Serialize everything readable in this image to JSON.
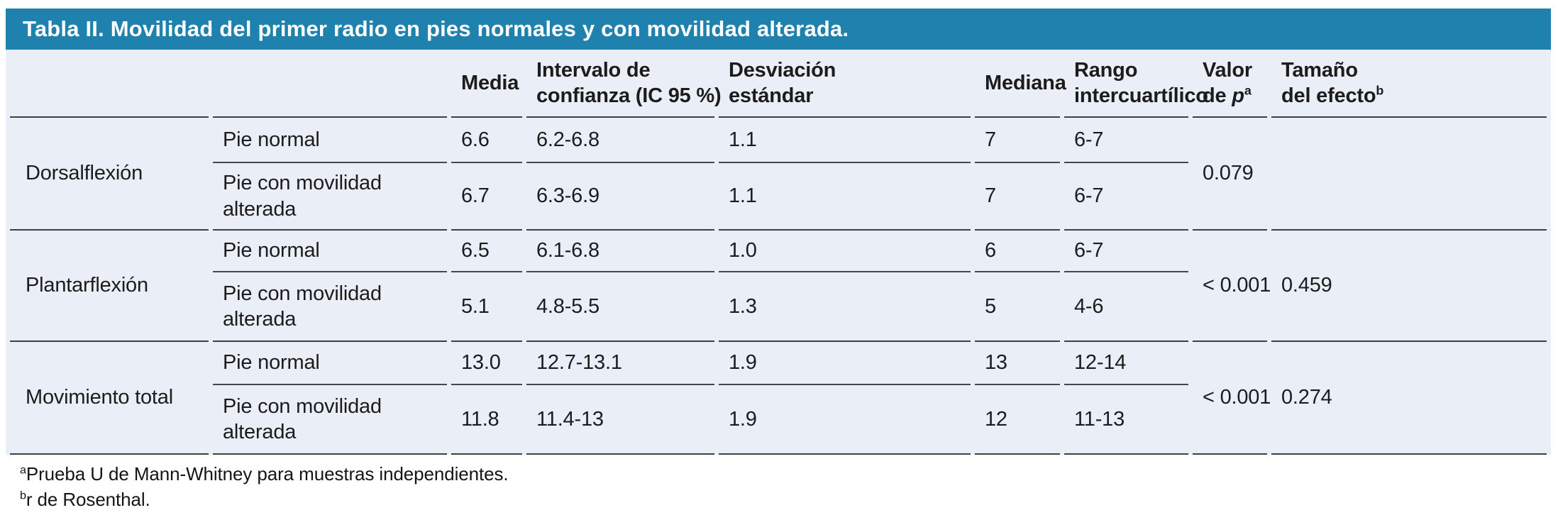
{
  "title": "Tabla II. Movilidad del primer radio en pies normales y con movilidad alterada.",
  "table": {
    "headers": {
      "media": "Media",
      "ci": {
        "line1": "Intervalo de",
        "line2": "confianza (IC 95 %)"
      },
      "sd": {
        "line1": "Desviación",
        "line2": "estándar"
      },
      "median": "Mediana",
      "iqr": {
        "line1": "Rango",
        "line2": "intercuartílico"
      },
      "p": {
        "line1": "Valor",
        "line2": "de ",
        "italic": "p",
        "sup": "a"
      },
      "effect": {
        "line1": "Tamaño",
        "line2": "del efecto",
        "sup": "b"
      }
    },
    "groups": [
      {
        "label": "Dorsalflexión",
        "rows": [
          {
            "condition": "Pie normal",
            "media": "6.6",
            "ci": "6.2-6.8",
            "sd": "1.1",
            "median": "7",
            "iqr": "6-7"
          },
          {
            "condition": "Pie con movilidad alterada",
            "media": "6.7",
            "ci": "6.3-6.9",
            "sd": "1.1",
            "median": "7",
            "iqr": "6-7"
          }
        ],
        "p_value": "0.079",
        "effect_size": ""
      },
      {
        "label": "Plantarflexión",
        "rows": [
          {
            "condition": "Pie normal",
            "media": "6.5",
            "ci": "6.1-6.8",
            "sd": "1.0",
            "median": "6",
            "iqr": "6-7"
          },
          {
            "condition": "Pie con movilidad alterada",
            "media": "5.1",
            "ci": "4.8-5.5",
            "sd": "1.3",
            "median": "5",
            "iqr": "4-6"
          }
        ],
        "p_value": "< 0.001",
        "effect_size": "0.459"
      },
      {
        "label": "Movimiento total",
        "rows": [
          {
            "condition": "Pie normal",
            "media": "13.0",
            "ci": "12.7-13.1",
            "sd": "1.9",
            "median": "13",
            "iqr": "12-14"
          },
          {
            "condition": "Pie con movilidad alterada",
            "media": "11.8",
            "ci": "11.4-13",
            "sd": "1.9",
            "median": "12",
            "iqr": "11-13"
          }
        ],
        "p_value": "< 0.001",
        "effect_size": "0.274"
      }
    ]
  },
  "footnotes": [
    {
      "sup": "a",
      "text": "Prueba U de Mann-Whitney para muestras independientes."
    },
    {
      "sup": "b",
      "text": "r de Rosenthal."
    }
  ],
  "colors": {
    "header_blue": "#1f81ae",
    "table_background": "#eaeef6",
    "rule_gray": "#3f3f3f"
  }
}
